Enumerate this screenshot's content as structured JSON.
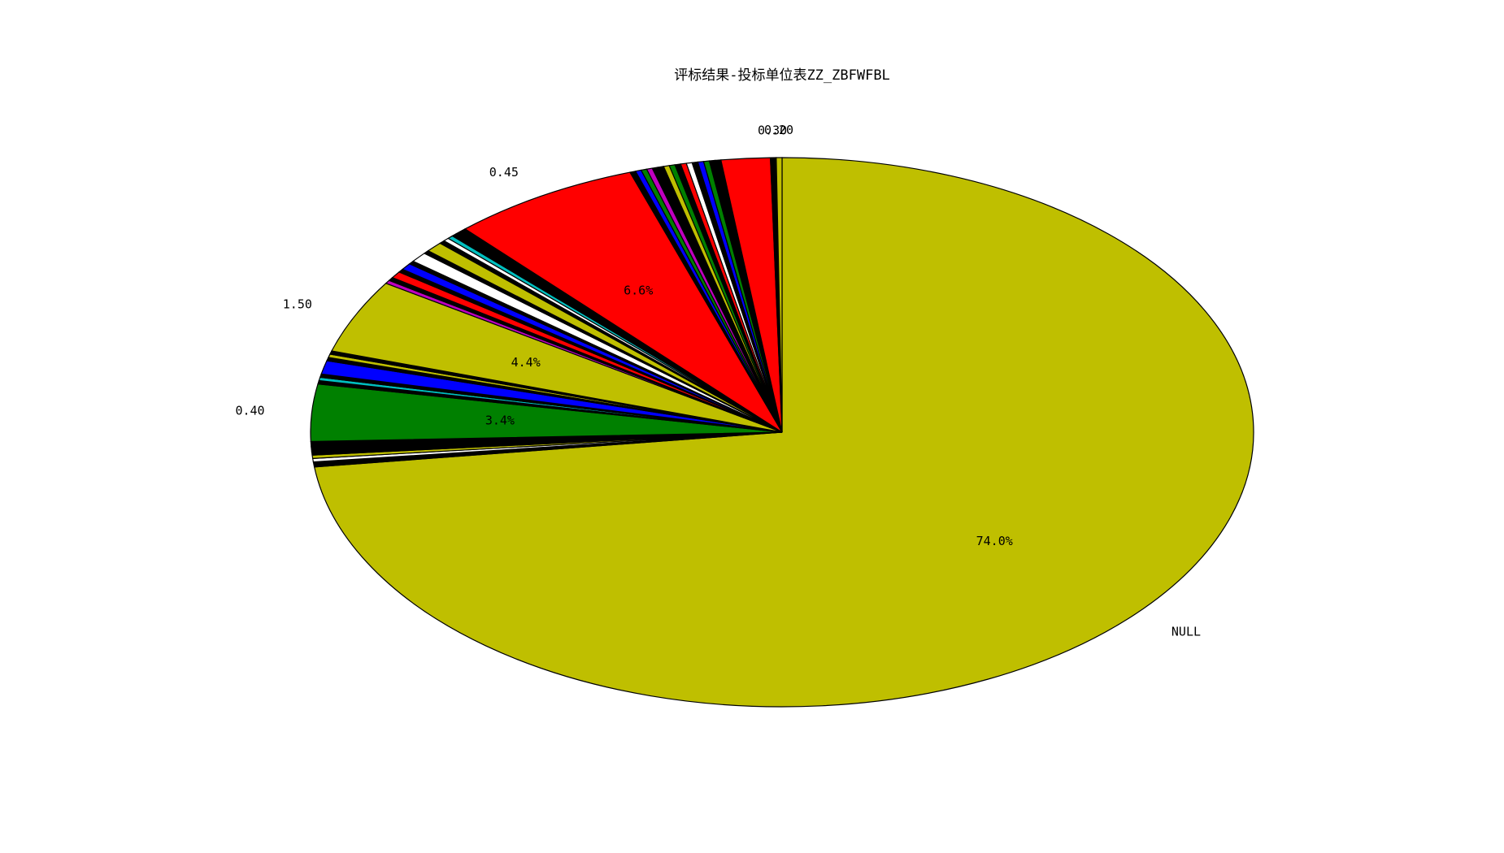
{
  "chart_data": {
    "type": "pie",
    "title": "评标结果-投标单位表ZZ_ZBFWFBL",
    "start_angle_deg": 90,
    "direction": "clockwise",
    "colors": [
      "#0000ff",
      "#008000",
      "#ff0000",
      "#00bfbf",
      "#bf00bf",
      "#bfbf00",
      "#000000",
      "#ffffff"
    ],
    "slices": [
      {
        "label": "NULL",
        "value": 74.0,
        "pct_label": "74.0%",
        "color": "#bfbf00"
      },
      {
        "label": "",
        "value": 0.3,
        "pct_label": "",
        "color": "#000000"
      },
      {
        "label": "",
        "value": 0.2,
        "pct_label": "",
        "color": "#ffffff"
      },
      {
        "label": "",
        "value": 0.2,
        "pct_label": "",
        "color": "#bfbf00"
      },
      {
        "label": "",
        "value": 0.2,
        "pct_label": "",
        "color": "#000000"
      },
      {
        "label": "",
        "value": 0.3,
        "pct_label": "",
        "color": "#000000"
      },
      {
        "label": "",
        "value": 0.3,
        "pct_label": "",
        "color": "#000000"
      },
      {
        "label": "0.40",
        "value": 3.4,
        "pct_label": "3.4%",
        "color": "#008000"
      },
      {
        "label": "",
        "value": 0.2,
        "pct_label": "",
        "color": "#000000"
      },
      {
        "label": "",
        "value": 0.2,
        "pct_label": "",
        "color": "#00bfbf"
      },
      {
        "label": "",
        "value": 0.2,
        "pct_label": "",
        "color": "#000000"
      },
      {
        "label": "",
        "value": 0.8,
        "pct_label": "",
        "color": "#0000ff"
      },
      {
        "label": "",
        "value": 0.2,
        "pct_label": "",
        "color": "#000000"
      },
      {
        "label": "",
        "value": 0.2,
        "pct_label": "",
        "color": "#bfbf00"
      },
      {
        "label": "",
        "value": 0.2,
        "pct_label": "",
        "color": "#000000"
      },
      {
        "label": "1.50",
        "value": 4.4,
        "pct_label": "4.4%",
        "color": "#bfbf00"
      },
      {
        "label": "",
        "value": 0.2,
        "pct_label": "",
        "color": "#bf00bf"
      },
      {
        "label": "",
        "value": 0.2,
        "pct_label": "",
        "color": "#000000"
      },
      {
        "label": "",
        "value": 0.4,
        "pct_label": "",
        "color": "#ff0000"
      },
      {
        "label": "",
        "value": 0.2,
        "pct_label": "",
        "color": "#000000"
      },
      {
        "label": "",
        "value": 0.4,
        "pct_label": "",
        "color": "#0000ff"
      },
      {
        "label": "",
        "value": 0.2,
        "pct_label": "",
        "color": "#000000"
      },
      {
        "label": "",
        "value": 0.6,
        "pct_label": "",
        "color": "#ffffff"
      },
      {
        "label": "",
        "value": 0.2,
        "pct_label": "",
        "color": "#000000"
      },
      {
        "label": "",
        "value": 0.6,
        "pct_label": "",
        "color": "#bfbf00"
      },
      {
        "label": "",
        "value": 0.2,
        "pct_label": "",
        "color": "#000000"
      },
      {
        "label": "",
        "value": 0.2,
        "pct_label": "",
        "color": "#ffffff"
      },
      {
        "label": "",
        "value": 0.2,
        "pct_label": "",
        "color": "#00bfbf"
      },
      {
        "label": "",
        "value": 0.2,
        "pct_label": "",
        "color": "#000000"
      },
      {
        "label": "",
        "value": 0.4,
        "pct_label": "",
        "color": "#000000"
      },
      {
        "label": "0.45",
        "value": 6.6,
        "pct_label": "6.6%",
        "color": "#ff0000"
      },
      {
        "label": "",
        "value": 0.2,
        "pct_label": "",
        "color": "#000000"
      },
      {
        "label": "",
        "value": 0.2,
        "pct_label": "",
        "color": "#0000ff"
      },
      {
        "label": "",
        "value": 0.2,
        "pct_label": "",
        "color": "#008000"
      },
      {
        "label": "",
        "value": 0.2,
        "pct_label": "",
        "color": "#bf00bf"
      },
      {
        "label": "",
        "value": 0.2,
        "pct_label": "",
        "color": "#000000"
      },
      {
        "label": "",
        "value": 0.2,
        "pct_label": "",
        "color": "#000000"
      },
      {
        "label": "",
        "value": 0.2,
        "pct_label": "",
        "color": "#bfbf00"
      },
      {
        "label": "",
        "value": 0.2,
        "pct_label": "",
        "color": "#008000"
      },
      {
        "label": "",
        "value": 0.2,
        "pct_label": "",
        "color": "#000000"
      },
      {
        "label": "",
        "value": 0.2,
        "pct_label": "",
        "color": "#ff0000"
      },
      {
        "label": "",
        "value": 0.2,
        "pct_label": "",
        "color": "#ffffff"
      },
      {
        "label": "",
        "value": 0.2,
        "pct_label": "",
        "color": "#000000"
      },
      {
        "label": "",
        "value": 0.2,
        "pct_label": "",
        "color": "#0000ff"
      },
      {
        "label": "",
        "value": 0.2,
        "pct_label": "",
        "color": "#008000"
      },
      {
        "label": "",
        "value": 0.2,
        "pct_label": "",
        "color": "#000000"
      },
      {
        "label": "",
        "value": 0.2,
        "pct_label": "",
        "color": "#000000"
      },
      {
        "label": "",
        "value": 1.7,
        "pct_label": "",
        "color": "#ff0000"
      },
      {
        "label": "0.30",
        "value": 0.2,
        "pct_label": "",
        "color": "#000000"
      },
      {
        "label": "0.20",
        "value": 0.2,
        "pct_label": "",
        "color": "#bfbf00"
      }
    ]
  }
}
